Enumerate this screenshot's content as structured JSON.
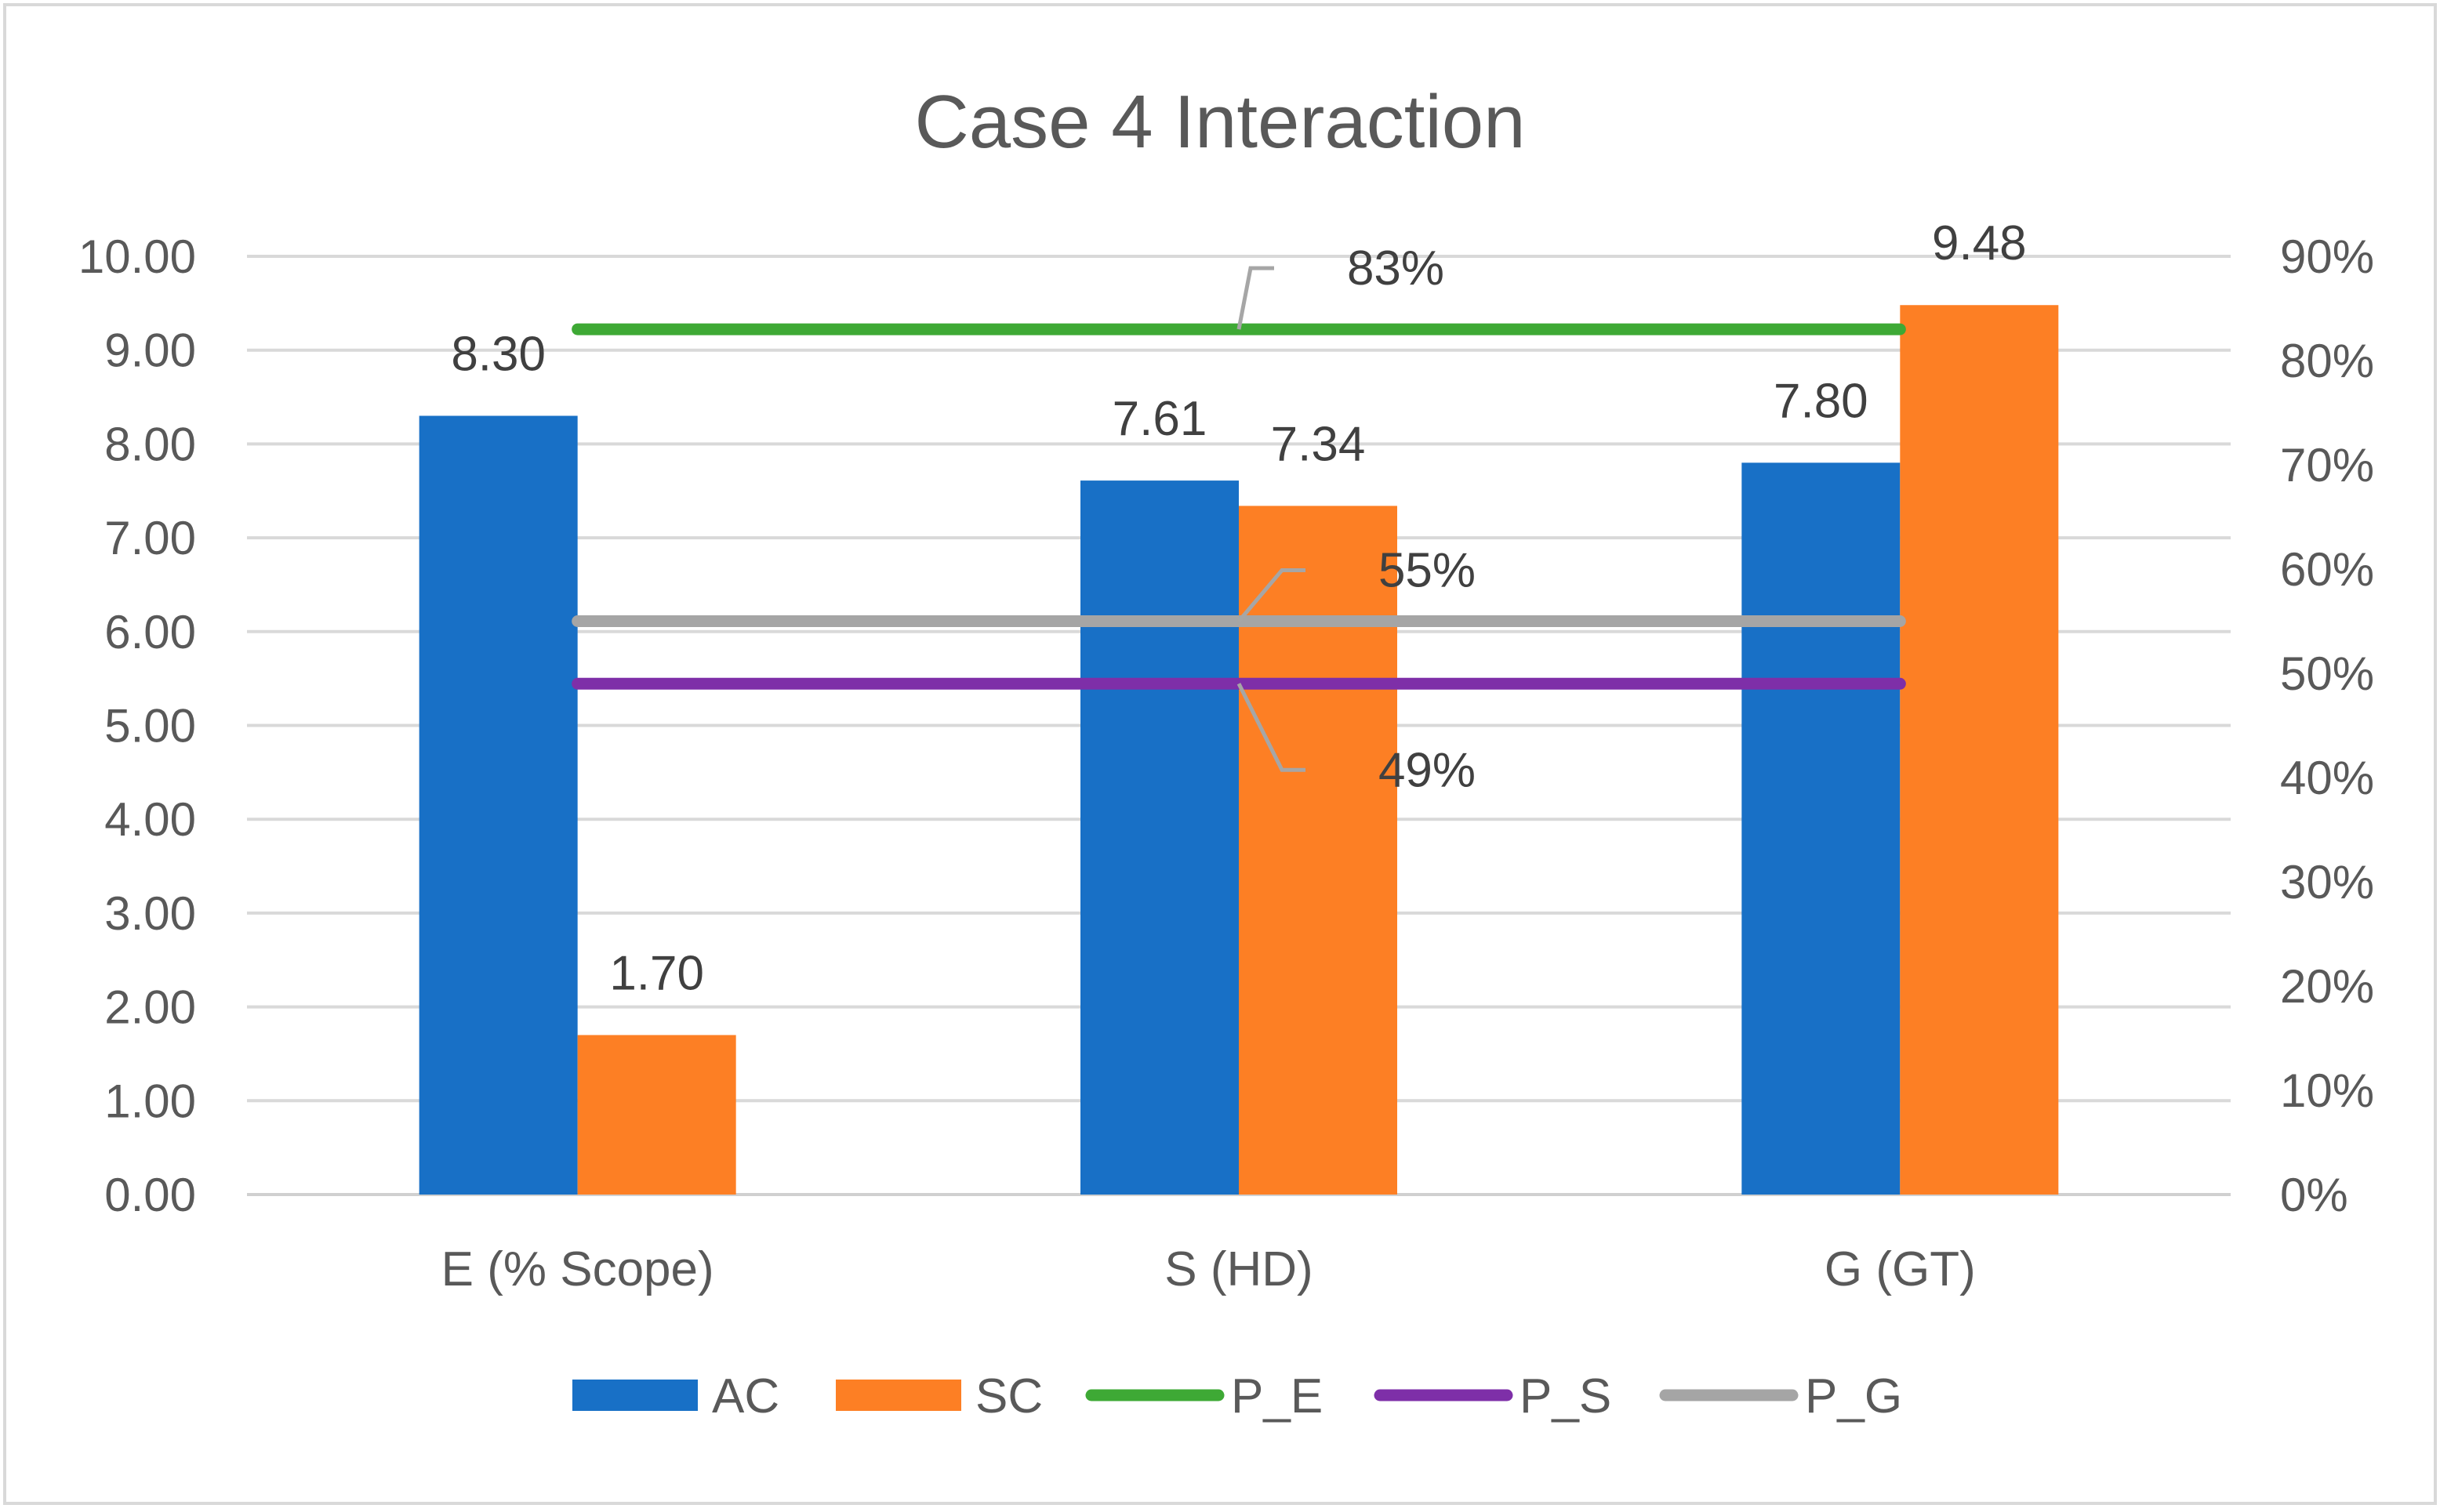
{
  "chart_data": {
    "type": "bar",
    "title": "Case 4 Interaction",
    "categories": [
      "E (% Scope)",
      "S (HD)",
      "G (GT)"
    ],
    "series": [
      {
        "name": "AC",
        "kind": "bar",
        "color": "#1870c6",
        "values": [
          8.3,
          7.61,
          7.8
        ],
        "labels": [
          "8.30",
          "7.61",
          "7.80"
        ]
      },
      {
        "name": "SC",
        "kind": "bar",
        "color": "#fd7f24",
        "values": [
          1.7,
          7.34,
          9.48
        ],
        "labels": [
          "1.70",
          "7.34",
          "9.48"
        ]
      }
    ],
    "lines": [
      {
        "name": "P_E",
        "color": "#3ea935",
        "value": 0.83,
        "label": "83%"
      },
      {
        "name": "P_S",
        "color": "#7e2fa8",
        "value": 0.49,
        "label": "49%"
      },
      {
        "name": "P_G",
        "color": "#a5a5a5",
        "value": 0.55,
        "label": "55%"
      }
    ],
    "y_primary": {
      "ylim": [
        0,
        10
      ],
      "ticks": [
        "0.00",
        "1.00",
        "2.00",
        "3.00",
        "4.00",
        "5.00",
        "6.00",
        "7.00",
        "8.00",
        "9.00",
        "10.00"
      ]
    },
    "y_secondary": {
      "ylim": [
        0,
        0.9
      ],
      "ticks": [
        "0%",
        "10%",
        "20%",
        "30%",
        "40%",
        "50%",
        "60%",
        "70%",
        "80%",
        "90%"
      ]
    },
    "grid": true,
    "legend_position": "bottom",
    "xlabel": "",
    "ylabel": ""
  }
}
